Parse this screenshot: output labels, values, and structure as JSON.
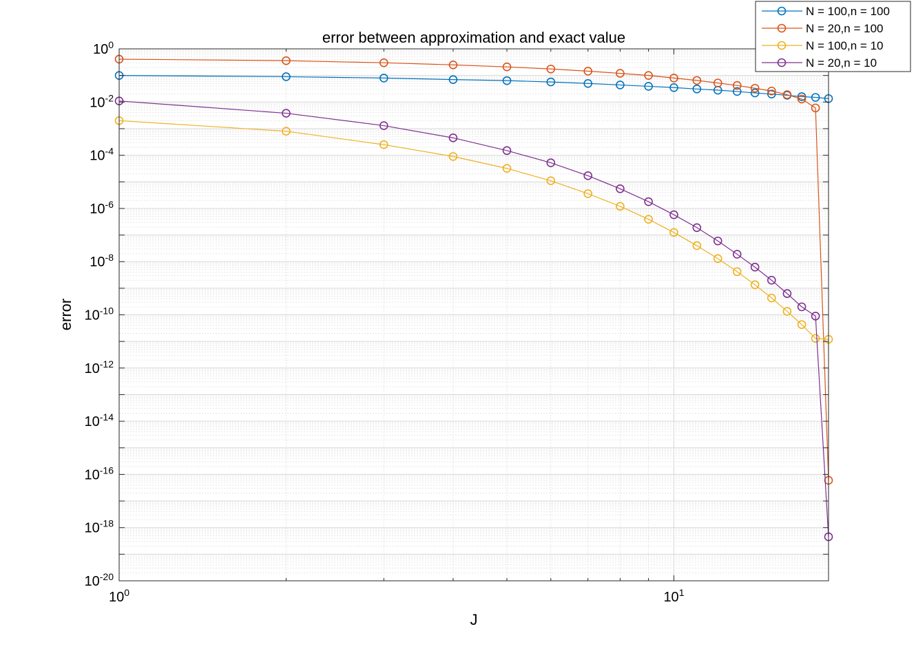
{
  "chart_data": {
    "type": "line",
    "title": "error between approximation and exact value",
    "xlabel": "J",
    "ylabel": "error",
    "xscale": "log",
    "yscale": "log",
    "xlim": [
      1,
      19
    ],
    "ylim": [
      1e-20,
      1
    ],
    "grid": true,
    "minor_grid": true,
    "legend_position": "top-right",
    "x_ticks": [
      {
        "value": 1,
        "base": "10",
        "exp": "0"
      },
      {
        "value": 10,
        "base": "10",
        "exp": "1"
      }
    ],
    "y_ticks": [
      {
        "value": 1,
        "base": "10",
        "exp": "0"
      },
      {
        "value": 0.01,
        "base": "10",
        "exp": "-2"
      },
      {
        "value": 0.0001,
        "base": "10",
        "exp": "-4"
      },
      {
        "value": 1e-06,
        "base": "10",
        "exp": "-6"
      },
      {
        "value": 1e-08,
        "base": "10",
        "exp": "-8"
      },
      {
        "value": 1e-10,
        "base": "10",
        "exp": "-10"
      },
      {
        "value": 1e-12,
        "base": "10",
        "exp": "-12"
      },
      {
        "value": 1e-14,
        "base": "10",
        "exp": "-14"
      },
      {
        "value": 1e-16,
        "base": "10",
        "exp": "-16"
      },
      {
        "value": 1e-18,
        "base": "10",
        "exp": "-18"
      },
      {
        "value": 1e-20,
        "base": "10",
        "exp": "-20"
      }
    ],
    "x": [
      1,
      2,
      3,
      4,
      5,
      6,
      7,
      8,
      9,
      10,
      11,
      12,
      13,
      14,
      15,
      16,
      17,
      18,
      19
    ],
    "series": [
      {
        "name": "N = 100,n = 100",
        "color": "#0072BD",
        "values": [
          0.1,
          0.09,
          0.08,
          0.07,
          0.064,
          0.057,
          0.05,
          0.044,
          0.039,
          0.035,
          0.031,
          0.028,
          0.025,
          0.022,
          0.02,
          0.018,
          0.016,
          0.015,
          0.0135
        ]
      },
      {
        "name": "N = 20,n = 100",
        "color": "#D95319",
        "values": [
          0.41,
          0.36,
          0.3,
          0.25,
          0.21,
          0.175,
          0.145,
          0.12,
          0.1,
          0.08,
          0.065,
          0.052,
          0.042,
          0.033,
          0.026,
          0.019,
          0.013,
          0.006,
          6e-17
        ]
      },
      {
        "name": "N = 100,n = 10",
        "color": "#EDB120",
        "values": [
          0.002,
          0.0008,
          0.00025,
          9e-05,
          3.2e-05,
          1.1e-05,
          3.6e-06,
          1.2e-06,
          3.9e-07,
          1.25e-07,
          4e-08,
          1.3e-08,
          4.2e-09,
          1.35e-09,
          4.3e-10,
          1.35e-10,
          4.3e-11,
          1.3e-11,
          1.2e-11
        ]
      },
      {
        "name": "N = 20,n = 10",
        "color": "#7E2F8E",
        "values": [
          0.011,
          0.0038,
          0.0013,
          0.00045,
          0.00015,
          5.2e-05,
          1.7e-05,
          5.5e-06,
          1.8e-06,
          5.8e-07,
          1.9e-07,
          6e-08,
          1.9e-08,
          6.2e-09,
          2e-09,
          6.3e-10,
          2e-10,
          9e-11,
          4.5e-19
        ]
      }
    ]
  }
}
